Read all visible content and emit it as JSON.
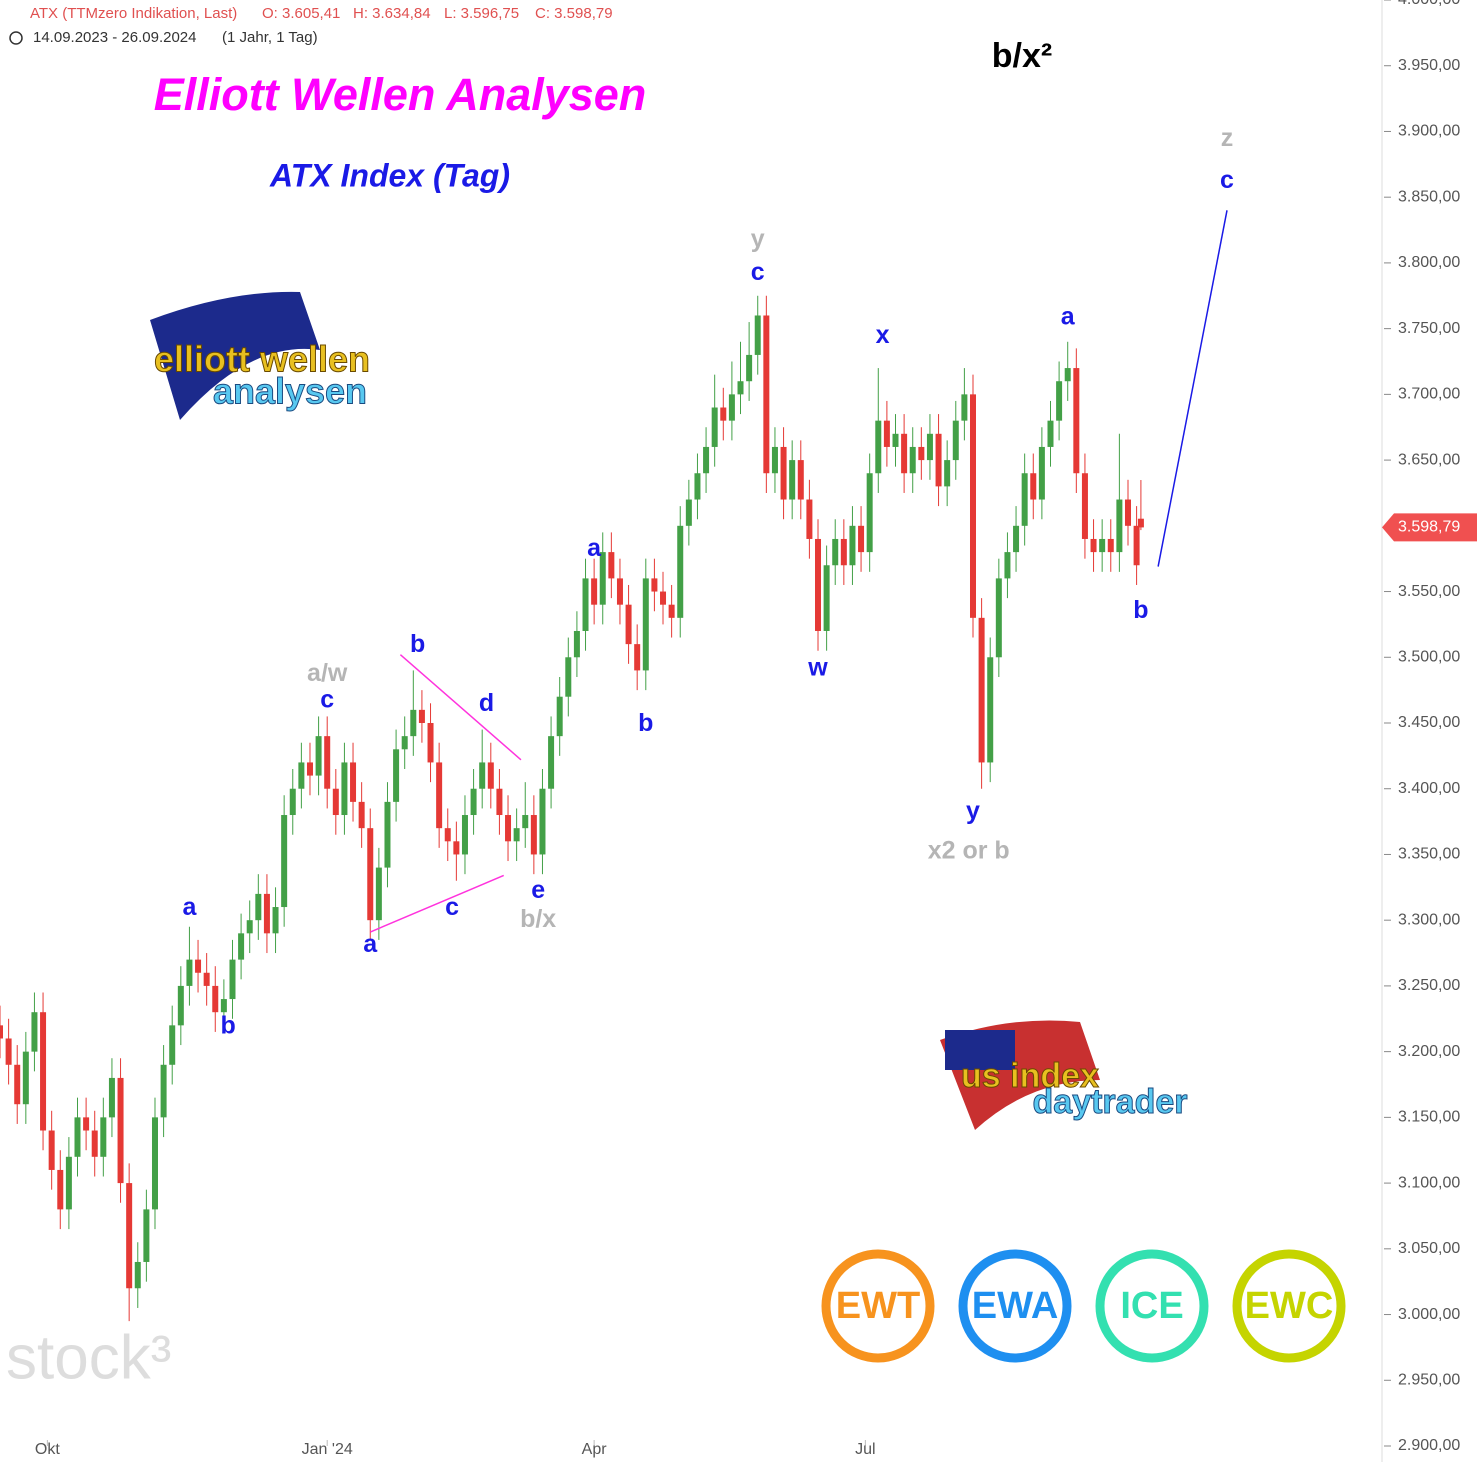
{
  "chart_data": {
    "type": "candlestick",
    "header": {
      "instrument": "ATX (TTMzero Indikation, Last)",
      "ohlc": [
        "O: 3.605,41",
        "H: 3.634,84",
        "L: 3.596,75",
        "C: 3.598,79"
      ],
      "range": "14.09.2023 - 26.09.2024",
      "period": "(1 Jahr, 1 Tag)"
    },
    "title": "Elliott Wellen Analysen",
    "subtitle": "ATX Index (Tag)",
    "corner_label": "b/x²",
    "watermark": "stock³",
    "up_color": "#43a047",
    "down_color": "#e53935",
    "xlim": [
      0,
      321
    ],
    "xticks": [
      {
        "value": 11,
        "label": "Okt"
      },
      {
        "value": 76,
        "label": "Jan '24"
      },
      {
        "value": 138,
        "label": "Apr"
      },
      {
        "value": 201,
        "label": "Jul"
      }
    ],
    "ylim": [
      2900,
      4000
    ],
    "yticks": [
      {
        "value": 2900,
        "label": "2.900,00"
      },
      {
        "value": 2950,
        "label": "2.950,00"
      },
      {
        "value": 3000,
        "label": "3.000,00"
      },
      {
        "value": 3050,
        "label": "3.050,00"
      },
      {
        "value": 3100,
        "label": "3.100,00"
      },
      {
        "value": 3150,
        "label": "3.150,00"
      },
      {
        "value": 3200,
        "label": "3.200,00"
      },
      {
        "value": 3250,
        "label": "3.250,00"
      },
      {
        "value": 3300,
        "label": "3.300,00"
      },
      {
        "value": 3350,
        "label": "3.350,00"
      },
      {
        "value": 3400,
        "label": "3.400,00"
      },
      {
        "value": 3450,
        "label": "3.450,00"
      },
      {
        "value": 3500,
        "label": "3.500,00"
      },
      {
        "value": 3550,
        "label": "3.550,00"
      },
      {
        "value": 3600,
        "label": "3.600,00"
      },
      {
        "value": 3650,
        "label": "3.650,00"
      },
      {
        "value": 3700,
        "label": "3.700,00"
      },
      {
        "value": 3750,
        "label": "3.750,00"
      },
      {
        "value": 3800,
        "label": "3.800,00"
      },
      {
        "value": 3850,
        "label": "3.850,00"
      },
      {
        "value": 3900,
        "label": "3.900,00"
      },
      {
        "value": 3950,
        "label": "3.950,00"
      },
      {
        "value": 4000,
        "label": "4.000,00"
      }
    ],
    "last_price": {
      "value": 3598.79,
      "label": "3.598,79"
    },
    "x": [
      0,
      2,
      4,
      6,
      8,
      10,
      12,
      14,
      16,
      18,
      20,
      22,
      24,
      26,
      28,
      30,
      32,
      34,
      36,
      38,
      40,
      42,
      44,
      46,
      48,
      50,
      52,
      54,
      56,
      58,
      60,
      62,
      64,
      66,
      68,
      70,
      72,
      74,
      76,
      78,
      80,
      82,
      84,
      86,
      88,
      90,
      92,
      94,
      96,
      98,
      100,
      102,
      104,
      106,
      108,
      110,
      112,
      114,
      116,
      118,
      120,
      122,
      124,
      126,
      128,
      130,
      132,
      134,
      136,
      138,
      140,
      142,
      144,
      146,
      148,
      150,
      152,
      154,
      156,
      158,
      160,
      162,
      164,
      166,
      168,
      170,
      172,
      174,
      176,
      178,
      180,
      182,
      184,
      186,
      188,
      190,
      192,
      194,
      196,
      198,
      200,
      202,
      204,
      206,
      208,
      210,
      212,
      214,
      216,
      218,
      220,
      222,
      224,
      226,
      228,
      230,
      232,
      234,
      236,
      238,
      240,
      242,
      244,
      246,
      248,
      250,
      252,
      254,
      256,
      258,
      260,
      262,
      264,
      265
    ],
    "ohlc": [
      [
        3220,
        3235,
        3195,
        3210
      ],
      [
        3210,
        3225,
        3175,
        3190
      ],
      [
        3190,
        3205,
        3145,
        3160
      ],
      [
        3160,
        3215,
        3145,
        3200
      ],
      [
        3200,
        3245,
        3185,
        3230
      ],
      [
        3230,
        3245,
        3125,
        3140
      ],
      [
        3140,
        3155,
        3095,
        3110
      ],
      [
        3110,
        3125,
        3065,
        3080
      ],
      [
        3080,
        3135,
        3065,
        3120
      ],
      [
        3120,
        3165,
        3105,
        3150
      ],
      [
        3150,
        3165,
        3125,
        3140
      ],
      [
        3140,
        3155,
        3105,
        3120
      ],
      [
        3120,
        3165,
        3105,
        3150
      ],
      [
        3150,
        3195,
        3135,
        3180
      ],
      [
        3180,
        3195,
        3085,
        3100
      ],
      [
        3100,
        3115,
        2995,
        3020
      ],
      [
        3020,
        3055,
        3005,
        3040
      ],
      [
        3040,
        3095,
        3025,
        3080
      ],
      [
        3080,
        3165,
        3065,
        3150
      ],
      [
        3150,
        3205,
        3135,
        3190
      ],
      [
        3190,
        3235,
        3175,
        3220
      ],
      [
        3220,
        3265,
        3205,
        3250
      ],
      [
        3250,
        3295,
        3235,
        3270
      ],
      [
        3270,
        3285,
        3245,
        3260
      ],
      [
        3260,
        3275,
        3235,
        3250
      ],
      [
        3250,
        3265,
        3215,
        3230
      ],
      [
        3230,
        3255,
        3215,
        3240
      ],
      [
        3240,
        3285,
        3225,
        3270
      ],
      [
        3270,
        3305,
        3255,
        3290
      ],
      [
        3290,
        3315,
        3275,
        3300
      ],
      [
        3300,
        3335,
        3285,
        3320
      ],
      [
        3320,
        3335,
        3275,
        3290
      ],
      [
        3290,
        3325,
        3275,
        3310
      ],
      [
        3310,
        3395,
        3295,
        3380
      ],
      [
        3380,
        3415,
        3365,
        3400
      ],
      [
        3400,
        3435,
        3385,
        3420
      ],
      [
        3420,
        3435,
        3395,
        3410
      ],
      [
        3410,
        3455,
        3395,
        3440
      ],
      [
        3440,
        3455,
        3385,
        3400
      ],
      [
        3400,
        3415,
        3365,
        3380
      ],
      [
        3380,
        3435,
        3365,
        3420
      ],
      [
        3420,
        3435,
        3375,
        3390
      ],
      [
        3390,
        3405,
        3355,
        3370
      ],
      [
        3370,
        3385,
        3285,
        3300
      ],
      [
        3300,
        3355,
        3285,
        3340
      ],
      [
        3340,
        3405,
        3325,
        3390
      ],
      [
        3390,
        3445,
        3375,
        3430
      ],
      [
        3430,
        3455,
        3415,
        3440
      ],
      [
        3440,
        3490,
        3425,
        3460
      ],
      [
        3460,
        3475,
        3435,
        3450
      ],
      [
        3450,
        3465,
        3405,
        3420
      ],
      [
        3420,
        3435,
        3355,
        3370
      ],
      [
        3370,
        3385,
        3345,
        3360
      ],
      [
        3360,
        3375,
        3330,
        3350
      ],
      [
        3350,
        3395,
        3335,
        3380
      ],
      [
        3380,
        3415,
        3365,
        3400
      ],
      [
        3400,
        3445,
        3385,
        3420
      ],
      [
        3420,
        3435,
        3385,
        3400
      ],
      [
        3400,
        3415,
        3365,
        3380
      ],
      [
        3380,
        3395,
        3345,
        3360
      ],
      [
        3360,
        3385,
        3345,
        3370
      ],
      [
        3370,
        3405,
        3355,
        3380
      ],
      [
        3380,
        3395,
        3335,
        3350
      ],
      [
        3350,
        3415,
        3335,
        3400
      ],
      [
        3400,
        3455,
        3385,
        3440
      ],
      [
        3440,
        3485,
        3425,
        3470
      ],
      [
        3470,
        3515,
        3455,
        3500
      ],
      [
        3500,
        3535,
        3485,
        3520
      ],
      [
        3520,
        3575,
        3505,
        3560
      ],
      [
        3560,
        3575,
        3525,
        3540
      ],
      [
        3540,
        3595,
        3525,
        3580
      ],
      [
        3580,
        3595,
        3545,
        3560
      ],
      [
        3560,
        3575,
        3525,
        3540
      ],
      [
        3540,
        3555,
        3495,
        3510
      ],
      [
        3510,
        3525,
        3475,
        3490
      ],
      [
        3490,
        3575,
        3475,
        3560
      ],
      [
        3560,
        3575,
        3535,
        3550
      ],
      [
        3550,
        3565,
        3525,
        3540
      ],
      [
        3540,
        3555,
        3515,
        3530
      ],
      [
        3530,
        3615,
        3515,
        3600
      ],
      [
        3600,
        3635,
        3585,
        3620
      ],
      [
        3620,
        3655,
        3605,
        3640
      ],
      [
        3640,
        3675,
        3625,
        3660
      ],
      [
        3660,
        3715,
        3645,
        3690
      ],
      [
        3690,
        3705,
        3665,
        3680
      ],
      [
        3680,
        3725,
        3665,
        3700
      ],
      [
        3700,
        3740,
        3685,
        3710
      ],
      [
        3710,
        3755,
        3695,
        3730
      ],
      [
        3730,
        3775,
        3715,
        3760
      ],
      [
        3760,
        3775,
        3625,
        3640
      ],
      [
        3640,
        3675,
        3625,
        3660
      ],
      [
        3660,
        3675,
        3605,
        3620
      ],
      [
        3620,
        3665,
        3605,
        3650
      ],
      [
        3650,
        3665,
        3605,
        3620
      ],
      [
        3620,
        3635,
        3575,
        3590
      ],
      [
        3590,
        3605,
        3505,
        3520
      ],
      [
        3520,
        3585,
        3505,
        3570
      ],
      [
        3570,
        3605,
        3555,
        3590
      ],
      [
        3590,
        3605,
        3555,
        3570
      ],
      [
        3570,
        3615,
        3555,
        3600
      ],
      [
        3600,
        3615,
        3565,
        3580
      ],
      [
        3580,
        3655,
        3565,
        3640
      ],
      [
        3640,
        3720,
        3625,
        3680
      ],
      [
        3680,
        3695,
        3645,
        3660
      ],
      [
        3660,
        3685,
        3645,
        3670
      ],
      [
        3670,
        3685,
        3625,
        3640
      ],
      [
        3640,
        3675,
        3625,
        3660
      ],
      [
        3660,
        3675,
        3635,
        3650
      ],
      [
        3650,
        3685,
        3635,
        3670
      ],
      [
        3670,
        3685,
        3615,
        3630
      ],
      [
        3630,
        3665,
        3615,
        3650
      ],
      [
        3650,
        3695,
        3635,
        3680
      ],
      [
        3680,
        3720,
        3665,
        3700
      ],
      [
        3700,
        3715,
        3515,
        3530
      ],
      [
        3530,
        3545,
        3400,
        3420
      ],
      [
        3420,
        3515,
        3405,
        3500
      ],
      [
        3500,
        3575,
        3485,
        3560
      ],
      [
        3560,
        3595,
        3545,
        3580
      ],
      [
        3580,
        3615,
        3565,
        3600
      ],
      [
        3600,
        3655,
        3585,
        3640
      ],
      [
        3640,
        3655,
        3605,
        3620
      ],
      [
        3620,
        3675,
        3605,
        3660
      ],
      [
        3660,
        3695,
        3645,
        3680
      ],
      [
        3680,
        3725,
        3665,
        3710
      ],
      [
        3710,
        3740,
        3695,
        3720
      ],
      [
        3720,
        3735,
        3625,
        3640
      ],
      [
        3640,
        3655,
        3575,
        3590
      ],
      [
        3590,
        3605,
        3565,
        3580
      ],
      [
        3580,
        3605,
        3565,
        3590
      ],
      [
        3590,
        3605,
        3565,
        3580
      ],
      [
        3580,
        3670,
        3565,
        3620
      ],
      [
        3620,
        3635,
        3585,
        3600
      ],
      [
        3600,
        3615,
        3555,
        3570
      ],
      [
        3605.41,
        3634.84,
        3596.75,
        3598.79
      ]
    ],
    "annotations": [
      {
        "text": "a",
        "x": 44,
        "y": 3309,
        "color": "#1a1ae6"
      },
      {
        "text": "b",
        "x": 53,
        "y": 3219,
        "color": "#1a1ae6"
      },
      {
        "text": "a/w",
        "x": 76,
        "y": 3487,
        "color": "#b5b5b5"
      },
      {
        "text": "c",
        "x": 76,
        "y": 3467,
        "color": "#1a1ae6"
      },
      {
        "text": "b",
        "x": 97,
        "y": 3509,
        "color": "#1a1ae6"
      },
      {
        "text": "d",
        "x": 113,
        "y": 3464,
        "color": "#1a1ae6"
      },
      {
        "text": "a",
        "x": 86,
        "y": 3281,
        "color": "#1a1ae6"
      },
      {
        "text": "c",
        "x": 105,
        "y": 3309,
        "color": "#1a1ae6"
      },
      {
        "text": "e",
        "x": 125,
        "y": 3322,
        "color": "#1a1ae6"
      },
      {
        "text": "b/x",
        "x": 125,
        "y": 3300,
        "color": "#b5b5b5"
      },
      {
        "text": "a",
        "x": 138,
        "y": 3582,
        "color": "#1a1ae6"
      },
      {
        "text": "b",
        "x": 150,
        "y": 3449,
        "color": "#1a1ae6"
      },
      {
        "text": "y",
        "x": 176,
        "y": 3817,
        "color": "#b5b5b5"
      },
      {
        "text": "c",
        "x": 176,
        "y": 3792,
        "color": "#1a1ae6"
      },
      {
        "text": "w",
        "x": 190,
        "y": 3491,
        "color": "#1a1ae6"
      },
      {
        "text": "x",
        "x": 205,
        "y": 3744,
        "color": "#1a1ae6"
      },
      {
        "text": "y",
        "x": 226,
        "y": 3382,
        "color": "#1a1ae6"
      },
      {
        "text": "x2 or b",
        "x": 225,
        "y": 3352,
        "color": "#b5b5b5"
      },
      {
        "text": "a",
        "x": 248,
        "y": 3758,
        "color": "#1a1ae6"
      },
      {
        "text": "b",
        "x": 265,
        "y": 3535,
        "color": "#1a1ae6"
      },
      {
        "text": "z",
        "x": 285,
        "y": 3894,
        "color": "#b5b5b5"
      },
      {
        "text": "c",
        "x": 285,
        "y": 3862,
        "color": "#1a1ae6"
      }
    ],
    "lines": [
      {
        "x": [
          93,
          121
        ],
        "y": [
          3502,
          3422
        ],
        "color": "#ff33dd"
      },
      {
        "x": [
          86,
          117
        ],
        "y": [
          3291,
          3334
        ],
        "color": "#ff33dd"
      },
      {
        "x": [
          269,
          285
        ],
        "y": [
          3569,
          3840
        ],
        "color": "#1a1ae6"
      }
    ],
    "logos": {
      "top": [
        "elliott wellen",
        "analysen"
      ],
      "bottom": [
        "us index",
        "daytrader"
      ]
    },
    "badges": [
      {
        "text": "EWT",
        "color": "#f7931e"
      },
      {
        "text": "EWA",
        "color": "#1e8ff0"
      },
      {
        "text": "ICE",
        "color": "#33e0b0"
      },
      {
        "text": "EWC",
        "color": "#c5d400"
      }
    ]
  }
}
